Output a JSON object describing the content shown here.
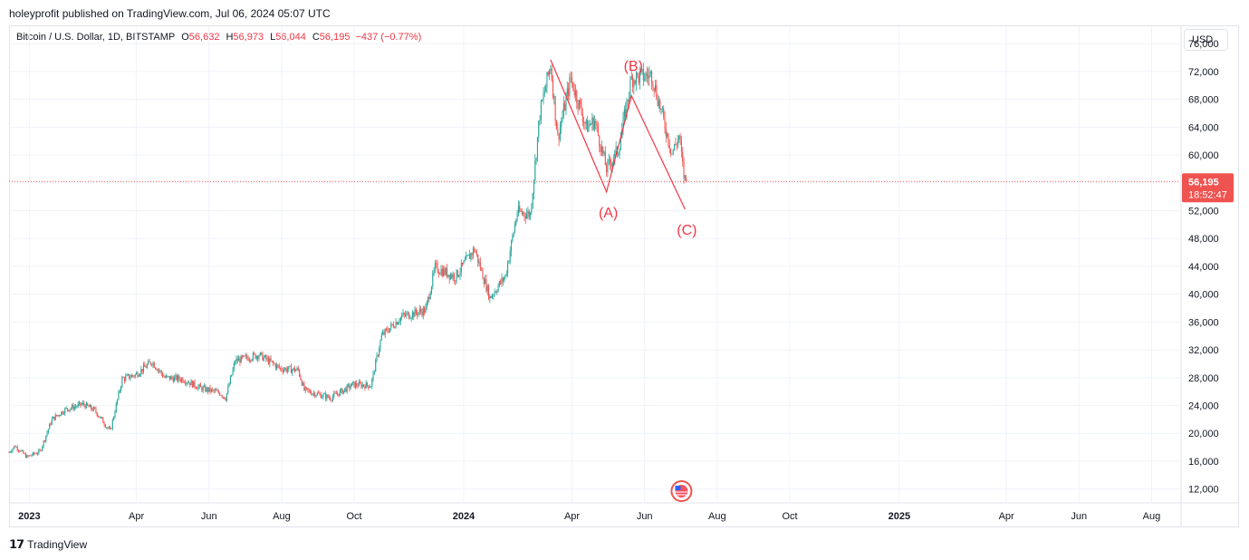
{
  "header": {
    "publish_line": "holeyprofit published on TradingView.com, Jul 06, 2024 05:07 UTC"
  },
  "legend": {
    "symbol": "Bitcoin / U.S. Dollar, 1D, BITSTAMP",
    "o_label": "O",
    "o_value": "56,632",
    "h_label": "H",
    "h_value": "56,973",
    "l_label": "L",
    "l_value": "56,044",
    "c_label": "C",
    "c_value": "56,195",
    "change": "−437 (−0.77%)"
  },
  "currency_button": "USD",
  "price_tag": {
    "price": "56,195",
    "countdown": "18:52:47"
  },
  "footer": {
    "brand": "TradingView"
  },
  "colors": {
    "up": "#26a69a",
    "down": "#ef5350",
    "annotation": "#f23645",
    "grid": "#f0f3fa"
  },
  "chart_data": {
    "type": "candlestick",
    "interval": "1D",
    "y_axis_ticks": [
      12000,
      16000,
      20000,
      24000,
      28000,
      32000,
      36000,
      40000,
      44000,
      48000,
      52000,
      56000,
      60000,
      64000,
      68000,
      72000,
      76000
    ],
    "y_tick_labels": [
      "12,000",
      "16,000",
      "20,000",
      "24,000",
      "28,000",
      "32,000",
      "36,000",
      "40,000",
      "44,000",
      "48,000",
      "52,000",
      "56,000",
      "60,000",
      "64,000",
      "68,000",
      "72,000",
      "76,000"
    ],
    "x_tick_labels": [
      {
        "label": "2023",
        "date": "2023-01-01",
        "bold": true
      },
      {
        "label": "Apr",
        "date": "2023-04-01"
      },
      {
        "label": "Jun",
        "date": "2023-06-01"
      },
      {
        "label": "Aug",
        "date": "2023-08-01"
      },
      {
        "label": "Oct",
        "date": "2023-10-01"
      },
      {
        "label": "2024",
        "date": "2024-01-01",
        "bold": true
      },
      {
        "label": "Apr",
        "date": "2024-04-01"
      },
      {
        "label": "Jun",
        "date": "2024-06-01"
      },
      {
        "label": "Aug",
        "date": "2024-08-01"
      },
      {
        "label": "Oct",
        "date": "2024-10-01"
      },
      {
        "label": "2025",
        "date": "2025-01-01",
        "bold": true
      },
      {
        "label": "Apr",
        "date": "2025-04-01"
      },
      {
        "label": "Jun",
        "date": "2025-06-01"
      },
      {
        "label": "Aug",
        "date": "2025-08-01"
      }
    ],
    "x_range": [
      "2022-12-15",
      "2025-08-25"
    ],
    "y_range": [
      10000,
      78500
    ],
    "last_close": 56195,
    "price_path": [
      {
        "date": "2022-12-15",
        "price": 17300
      },
      {
        "date": "2022-12-20",
        "price": 18200
      },
      {
        "date": "2022-12-30",
        "price": 16600
      },
      {
        "date": "2023-01-10",
        "price": 17400
      },
      {
        "date": "2023-01-20",
        "price": 22000
      },
      {
        "date": "2023-01-31",
        "price": 23400
      },
      {
        "date": "2023-02-15",
        "price": 24200
      },
      {
        "date": "2023-02-25",
        "price": 23300
      },
      {
        "date": "2023-03-10",
        "price": 20300
      },
      {
        "date": "2023-03-20",
        "price": 27800
      },
      {
        "date": "2023-03-31",
        "price": 28400
      },
      {
        "date": "2023-04-14",
        "price": 30300
      },
      {
        "date": "2023-04-25",
        "price": 28000
      },
      {
        "date": "2023-05-10",
        "price": 27800
      },
      {
        "date": "2023-05-25",
        "price": 26500
      },
      {
        "date": "2023-06-10",
        "price": 25800
      },
      {
        "date": "2023-06-15",
        "price": 25100
      },
      {
        "date": "2023-06-23",
        "price": 30400
      },
      {
        "date": "2023-07-13",
        "price": 31300
      },
      {
        "date": "2023-07-31",
        "price": 29300
      },
      {
        "date": "2023-08-15",
        "price": 29100
      },
      {
        "date": "2023-08-20",
        "price": 26200
      },
      {
        "date": "2023-09-11",
        "price": 25100
      },
      {
        "date": "2023-09-30",
        "price": 27000
      },
      {
        "date": "2023-10-15",
        "price": 26900
      },
      {
        "date": "2023-10-24",
        "price": 34000
      },
      {
        "date": "2023-11-10",
        "price": 36800
      },
      {
        "date": "2023-11-30",
        "price": 37700
      },
      {
        "date": "2023-12-08",
        "price": 43800
      },
      {
        "date": "2023-12-25",
        "price": 42500
      },
      {
        "date": "2024-01-10",
        "price": 46500
      },
      {
        "date": "2024-01-23",
        "price": 39500
      },
      {
        "date": "2024-02-05",
        "price": 42600
      },
      {
        "date": "2024-02-15",
        "price": 51800
      },
      {
        "date": "2024-02-26",
        "price": 51500
      },
      {
        "date": "2024-03-05",
        "price": 66000
      },
      {
        "date": "2024-03-14",
        "price": 73000
      },
      {
        "date": "2024-03-20",
        "price": 62500
      },
      {
        "date": "2024-03-31",
        "price": 71000
      },
      {
        "date": "2024-04-13",
        "price": 64000
      },
      {
        "date": "2024-04-20",
        "price": 64900
      },
      {
        "date": "2024-04-30",
        "price": 58000
      },
      {
        "date": "2024-05-10",
        "price": 60800
      },
      {
        "date": "2024-05-21",
        "price": 71000
      },
      {
        "date": "2024-06-07",
        "price": 71500
      },
      {
        "date": "2024-06-24",
        "price": 60300
      },
      {
        "date": "2024-06-30",
        "price": 62700
      },
      {
        "date": "2024-07-04",
        "price": 57000
      },
      {
        "date": "2024-07-06",
        "price": 56195
      }
    ],
    "annotations": {
      "wave_points": [
        {
          "date": "2024-03-14",
          "price": 73700
        },
        {
          "date": "2024-04-30",
          "price": 54700
        },
        {
          "date": "2024-05-21",
          "price": 68500
        },
        {
          "date": "2024-07-05",
          "price": 52200
        }
      ],
      "labels": [
        {
          "text": "(A)",
          "date": "2024-04-30",
          "price": 53000,
          "anchor": "below"
        },
        {
          "text": "(B)",
          "date": "2024-05-21",
          "price": 71700,
          "anchor": "above"
        },
        {
          "text": "(C)",
          "date": "2024-07-05",
          "price": 50500,
          "anchor": "below"
        }
      ]
    },
    "events_icon": {
      "name": "us-flag-icon",
      "date": "2024-07-02"
    }
  }
}
